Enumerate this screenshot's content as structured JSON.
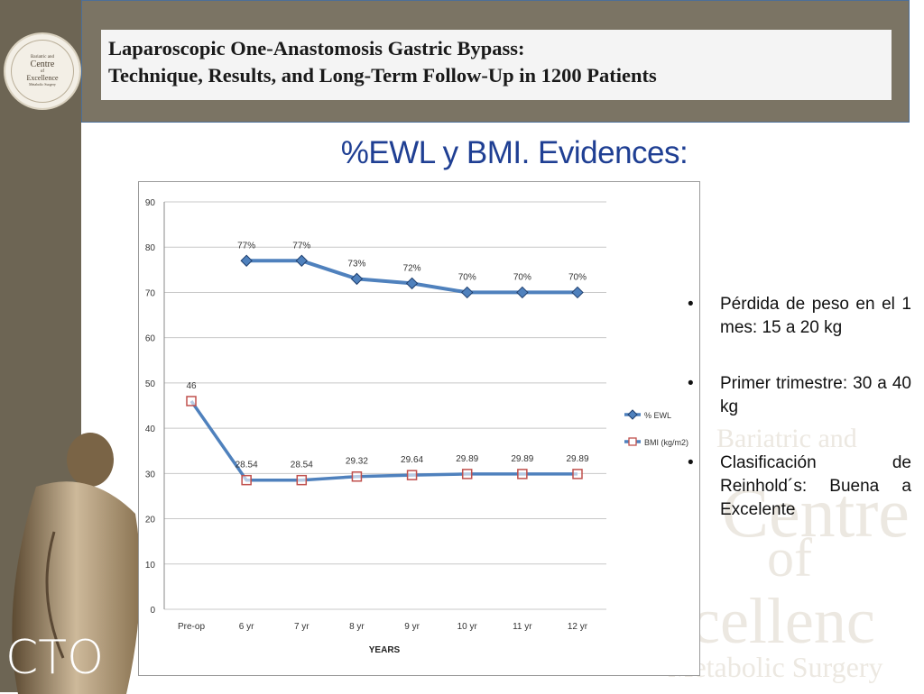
{
  "header": {
    "title_line1": "Laparoscopic One-Anastomosis Gastric Bypass:",
    "title_line2": "Technique, Results, and Long-Term Follow-Up in 1200 Patients"
  },
  "slide_title": "%EWL y BMI. Evidences:",
  "logo": {
    "line1": "Bariatric and",
    "line2": "Centre",
    "line3": "of",
    "line4": "Excellence",
    "line5": "Metabolic Surgery"
  },
  "watermark": {
    "line1": "Bariatric and",
    "line2": "Centre",
    "line3": "of",
    "line4": "xcellenc",
    "line5": "Metabolic Surgery"
  },
  "brand": "CTO",
  "bullets": [
    "Pérdida de peso en el 1 mes: 15 a 20 kg",
    "Primer trimestre: 30 a 40 kg",
    "Clasificación de Reinhold´s: Buena a Excelente"
  ],
  "chart_data": {
    "type": "line",
    "categories": [
      "Pre-op",
      "6 yr",
      "7 yr",
      "8 yr",
      "9 yr",
      "10 yr",
      "11 yr",
      "12 yr"
    ],
    "xlabel": "YEARS",
    "ylabel": "",
    "ylim": [
      0,
      90
    ],
    "yticks": [
      0,
      10,
      20,
      30,
      40,
      50,
      60,
      70,
      80,
      90
    ],
    "grid": true,
    "legend_position": "right",
    "series": [
      {
        "name": "% EWL",
        "color": "#4f81bd",
        "marker": "diamond",
        "values": [
          null,
          77,
          77,
          73,
          72,
          70,
          70,
          70
        ],
        "labels": [
          "",
          "77%",
          "77%",
          "73%",
          "72%",
          "70%",
          "70%",
          "70%"
        ]
      },
      {
        "name": "BMI (kg/m2)",
        "color": "#4f81bd",
        "marker": "square",
        "values": [
          46,
          28.54,
          28.54,
          29.32,
          29.64,
          29.89,
          29.89,
          29.89
        ],
        "labels": [
          "46",
          "28.54",
          "28.54",
          "29.32",
          "29.64",
          "29.89",
          "29.89",
          "29.89"
        ]
      }
    ]
  }
}
